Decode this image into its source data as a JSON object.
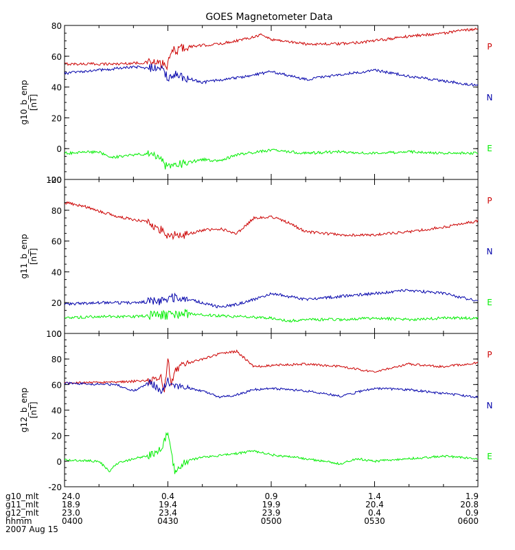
{
  "title": "GOES Magnetometer Data",
  "colors": {
    "P": "#cc0000",
    "N": "#0000aa",
    "E": "#00ee00",
    "axis": "#000000"
  },
  "x_ticks": [
    "0400",
    "0430",
    "0500",
    "0530",
    "0600"
  ],
  "footer": {
    "rows": [
      {
        "label": "g10_mlt",
        "values": [
          "24.0",
          "0.4",
          "0.9",
          "1.4",
          "1.9"
        ]
      },
      {
        "label": "g11_mlt",
        "values": [
          "18.9",
          "19.4",
          "19.9",
          "20.4",
          "20.8"
        ]
      },
      {
        "label": "g12_mlt",
        "values": [
          "23.0",
          "23.4",
          "23.9",
          "0.4",
          "0.9"
        ]
      },
      {
        "label": "hhmm",
        "values": [
          "0400",
          "0430",
          "0500",
          "0530",
          "0600"
        ]
      }
    ],
    "date": "2007 Aug 15"
  },
  "chart_data": [
    {
      "type": "line",
      "ylabel": "g10_b_enp",
      "unit": "[nT]",
      "ylim": [
        -20,
        80
      ],
      "yticks": [
        -20,
        0,
        20,
        40,
        60,
        80
      ],
      "xlim": [
        "04:00",
        "06:00"
      ],
      "series": [
        {
          "name": "P",
          "color": "#cc0000",
          "x": [
            "04:00",
            "04:15",
            "04:25",
            "04:30",
            "04:31",
            "04:35",
            "04:45",
            "04:52",
            "04:57",
            "05:00",
            "05:10",
            "05:20",
            "05:30",
            "05:40",
            "05:50",
            "06:00"
          ],
          "y": [
            55,
            55,
            56,
            54,
            63,
            66,
            68,
            71,
            74,
            71,
            68,
            68,
            70,
            73,
            75,
            78
          ]
        },
        {
          "name": "N",
          "color": "#0000aa",
          "x": [
            "04:00",
            "04:10",
            "04:20",
            "04:28",
            "04:30",
            "04:32",
            "04:40",
            "04:50",
            "04:55",
            "05:00",
            "05:10",
            "05:20",
            "05:30",
            "05:40",
            "05:50",
            "06:00"
          ],
          "y": [
            49,
            51,
            53,
            52,
            46,
            48,
            43,
            46,
            48,
            50,
            45,
            48,
            51,
            47,
            44,
            41
          ]
        },
        {
          "name": "E",
          "color": "#00ee00",
          "x": [
            "04:00",
            "04:10",
            "04:13",
            "04:20",
            "04:25",
            "04:28",
            "04:30",
            "04:34",
            "04:40",
            "04:45",
            "04:50",
            "05:00",
            "05:10",
            "05:20",
            "05:30",
            "05:40",
            "05:50",
            "06:00"
          ],
          "y": [
            -3,
            -2,
            -6,
            -4,
            -3,
            -8,
            -13,
            -10,
            -7,
            -8,
            -4,
            -1,
            -3,
            -2,
            -3,
            -2,
            -3,
            -3
          ]
        }
      ]
    },
    {
      "type": "line",
      "ylabel": "g11_b_enp",
      "unit": "[nT]",
      "ylim": [
        0,
        100
      ],
      "yticks": [
        0,
        20,
        40,
        60,
        80,
        100
      ],
      "xlim": [
        "04:00",
        "06:00"
      ],
      "series": [
        {
          "name": "P",
          "color": "#cc0000",
          "x": [
            "04:00",
            "04:05",
            "04:15",
            "04:25",
            "04:30",
            "04:35",
            "04:40",
            "04:45",
            "04:50",
            "04:55",
            "05:00",
            "05:05",
            "05:10",
            "05:20",
            "05:30",
            "05:40",
            "05:50",
            "06:00"
          ],
          "y": [
            85,
            83,
            76,
            72,
            64,
            64,
            67,
            68,
            65,
            75,
            76,
            72,
            66,
            64,
            64,
            66,
            69,
            73
          ]
        },
        {
          "name": "N",
          "color": "#0000aa",
          "x": [
            "04:00",
            "04:10",
            "04:20",
            "04:28",
            "04:33",
            "04:40",
            "04:45",
            "04:50",
            "04:55",
            "05:00",
            "05:10",
            "05:20",
            "05:30",
            "05:40",
            "05:50",
            "06:00"
          ],
          "y": [
            19,
            20,
            20,
            21,
            24,
            20,
            17,
            19,
            22,
            26,
            22,
            24,
            26,
            28,
            26,
            21
          ]
        },
        {
          "name": "E",
          "color": "#00ee00",
          "x": [
            "04:00",
            "04:10",
            "04:20",
            "04:30",
            "04:35",
            "04:40",
            "04:50",
            "05:00",
            "05:05",
            "05:10",
            "05:20",
            "05:30",
            "05:40",
            "05:50",
            "06:00"
          ],
          "y": [
            10,
            11,
            11,
            12,
            13,
            12,
            11,
            10,
            8,
            9,
            9,
            10,
            9,
            10,
            10
          ]
        }
      ]
    },
    {
      "type": "line",
      "ylabel": "g12_b_enp",
      "unit": "[nT]",
      "ylim": [
        -20,
        100
      ],
      "yticks": [
        -20,
        0,
        20,
        40,
        60,
        80,
        100
      ],
      "xlim": [
        "04:00",
        "06:00"
      ],
      "series": [
        {
          "name": "P",
          "color": "#cc0000",
          "x": [
            "04:00",
            "04:15",
            "04:25",
            "04:28",
            "04:29",
            "04:30",
            "04:31",
            "04:32",
            "04:35",
            "04:40",
            "04:45",
            "04:50",
            "04:55",
            "05:00",
            "05:10",
            "05:20",
            "05:30",
            "05:40",
            "05:50",
            "06:00"
          ],
          "y": [
            61,
            62,
            63,
            65,
            55,
            80,
            60,
            72,
            76,
            80,
            84,
            86,
            74,
            75,
            76,
            74,
            70,
            76,
            74,
            77
          ]
        },
        {
          "name": "N",
          "color": "#0000aa",
          "x": [
            "04:00",
            "04:15",
            "04:20",
            "04:25",
            "04:28",
            "04:30",
            "04:32",
            "04:35",
            "04:40",
            "04:45",
            "04:50",
            "04:55",
            "05:00",
            "05:10",
            "05:20",
            "05:30",
            "05:40",
            "05:50",
            "06:00"
          ],
          "y": [
            61,
            60,
            55,
            62,
            55,
            63,
            58,
            58,
            55,
            50,
            52,
            56,
            57,
            55,
            51,
            57,
            56,
            53,
            50
          ]
        },
        {
          "name": "E",
          "color": "#00ee00",
          "x": [
            "04:00",
            "04:10",
            "04:13",
            "04:15",
            "04:20",
            "04:25",
            "04:28",
            "04:30",
            "04:31",
            "04:32",
            "04:35",
            "04:40",
            "04:50",
            "04:55",
            "05:00",
            "05:10",
            "05:20",
            "05:25",
            "05:30",
            "05:40",
            "05:50",
            "06:00"
          ],
          "y": [
            1,
            0,
            -8,
            -2,
            2,
            5,
            10,
            22,
            6,
            -8,
            0,
            3,
            6,
            8,
            5,
            2,
            -2,
            2,
            0,
            2,
            4,
            2
          ]
        }
      ]
    }
  ]
}
